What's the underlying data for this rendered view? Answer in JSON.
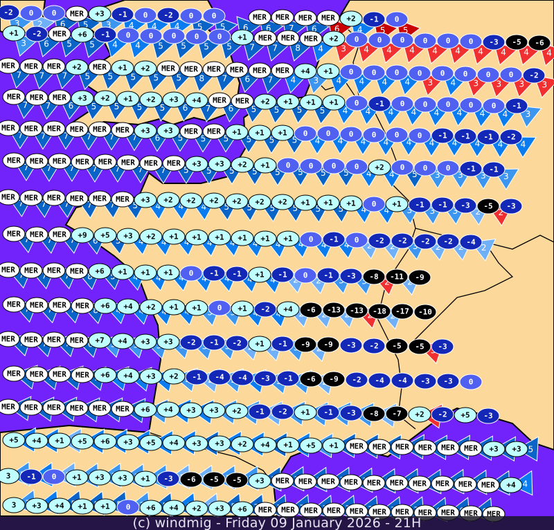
{
  "caption": "(c) windmig - Friday 09 January 2026 - 21H",
  "colors": {
    "sea": "#7222fa",
    "land": "#fcd99a",
    "border": "#000000",
    "temp_sea": "#ffffff",
    "temp_positive": "#c0ffff",
    "temp_zero": "#5060f0",
    "temp_negative": "#1428b8",
    "temp_very_cold": "#000000",
    "wind_2": "#70b0f8",
    "wind_3": "#3c96f0",
    "wind_4": "#0a7cf0",
    "wind_5plus": "#0a64c8",
    "wind_alert": "#f03030",
    "wind_alert_strong": "#c80000"
  },
  "map": {
    "sea_label": "MER",
    "rows": [
      {
        "temps": [
          "-2",
          "0",
          "0",
          "MER",
          "+3",
          "-1",
          "0",
          "-2",
          "0",
          "0",
          "",
          "MER",
          "MER",
          "MER",
          "MER",
          "+2",
          "-1",
          "0",
          "",
          "",
          "",
          "",
          "",
          ""
        ],
        "winds": [
          "3",
          "2",
          "6",
          "5",
          "3",
          "4",
          "4",
          "4",
          "5",
          "5",
          "6",
          "6",
          "7",
          "6",
          "6r",
          "4",
          "5r",
          "5r",
          "",
          "",
          "",
          "",
          "",
          ""
        ]
      },
      {
        "temps": [
          "+1",
          "-2",
          "MER",
          "+6",
          "-1",
          "0",
          "0",
          "0",
          "0",
          "0",
          "+1",
          "MER",
          "MER",
          "MER",
          "+2",
          "0",
          "0",
          "0",
          "0",
          "0",
          "0",
          "-3",
          "-5",
          "-6"
        ],
        "winds": [
          "3",
          "6",
          "5",
          "5",
          "4",
          "4",
          "5",
          "5",
          "5",
          "5",
          "7",
          "7",
          "8",
          "4",
          "3r",
          "4r",
          "4r",
          "4r",
          "4r",
          "4r",
          "4r",
          "4r",
          "4r",
          "4r"
        ]
      },
      {
        "temps": [
          "MER",
          "MER",
          "MER",
          "+2",
          "MER",
          "+1",
          "+2",
          "MER",
          "MER",
          "MER",
          "MER",
          "MER",
          "MER",
          "+4",
          "+1",
          "0",
          "0",
          "0",
          "0",
          "0",
          "0",
          "0",
          "0",
          "-2"
        ],
        "winds": [
          "7",
          "7",
          "7",
          "5",
          "5",
          "5",
          "5",
          "5",
          "8",
          "7",
          "6",
          "7",
          "4",
          "3",
          "4",
          "4",
          "4",
          "4",
          "3r",
          "4",
          "3r",
          "3r",
          "3r",
          "3r"
        ]
      },
      {
        "temps": [
          "MER",
          "MER",
          "MER",
          "+3",
          "+2",
          "+1",
          "+2",
          "+3",
          "+4",
          "MER",
          "MER",
          "+2",
          "+1",
          "+1",
          "+1",
          "0",
          "-1",
          "0",
          "0",
          "0",
          "0",
          "0",
          "-1",
          ""
        ],
        "winds": [
          "7",
          "7",
          "6",
          "5",
          "5",
          "5",
          "5",
          "6",
          "7",
          "6",
          "5",
          "5",
          "5",
          "5",
          "4",
          "4",
          "4",
          "4",
          "4",
          "4",
          "4",
          "4",
          "3",
          ""
        ]
      },
      {
        "temps": [
          "MER",
          "MER",
          "MER",
          "MER",
          "MER",
          "MER",
          "+3",
          "+3",
          "MER",
          "MER",
          "+1",
          "+1",
          "+1",
          "0",
          "0",
          "0",
          "0",
          "0",
          "0",
          "-1",
          "-1",
          "-1",
          "-2",
          ""
        ],
        "winds": [
          "7",
          "7",
          "7",
          "7",
          "7",
          "7",
          "6",
          "5",
          "5",
          "5",
          "5",
          "5",
          "5",
          "4",
          "4",
          "4",
          "4",
          "4",
          "4",
          "4",
          "4",
          "4",
          "4",
          ""
        ]
      },
      {
        "temps": [
          "MER",
          "MER",
          "MER",
          "MER",
          "MER",
          "MER",
          "MER",
          "MER",
          "+3",
          "+3",
          "+2",
          "+1",
          "0",
          "0",
          "0",
          "0",
          "+2",
          "0",
          "0",
          "0",
          "-1",
          "-1",
          "",
          ""
        ],
        "winds": [
          "7",
          "7",
          "7",
          "7",
          "7",
          "7",
          "7",
          "5",
          "5",
          "5",
          "5",
          "5",
          "5",
          "5",
          "5",
          "4",
          "4",
          "5",
          "3",
          "3",
          "3",
          "3",
          "",
          ""
        ]
      },
      {
        "temps": [
          "MER",
          "MER",
          "MER",
          "MER",
          "MER",
          "MER",
          "+3",
          "+2",
          "+2",
          "+2",
          "+2",
          "+2",
          "+2",
          "+1",
          "+1",
          "+1",
          "0",
          "+1",
          "-1",
          "-1",
          "-3",
          "-5",
          "-3",
          ""
        ],
        "winds": [
          "7",
          "7",
          "7",
          "7",
          "7",
          "5",
          "4",
          "4",
          "4",
          "5",
          "5",
          "5",
          "5",
          "5",
          "5",
          "4",
          "4",
          "3",
          "3",
          "3",
          "2",
          "2r",
          "",
          ""
        ]
      },
      {
        "temps": [
          "MER",
          "MER",
          "MER",
          "+9",
          "+5",
          "+3",
          "+2",
          "+1",
          "+1",
          "+1",
          "+1",
          "+1",
          "+1",
          "0",
          "-1",
          "0",
          "-2",
          "-2",
          "-2",
          "-2",
          "-4",
          "",
          "",
          ""
        ],
        "winds": [
          "7",
          "7",
          "7",
          "6",
          "5",
          "4",
          "4",
          "4",
          "4",
          "4",
          "4",
          "4",
          "4",
          "4",
          "4",
          "2",
          "2",
          "3",
          "2",
          "2",
          "2",
          "",
          "",
          ""
        ]
      },
      {
        "temps": [
          "MER",
          "MER",
          "MER",
          "MER",
          "+6",
          "+1",
          "+1",
          "+1",
          "0",
          "-1",
          "-1",
          "+1",
          "-1",
          "0",
          "-1",
          "-3",
          "-8",
          "-11",
          "-9",
          "",
          "",
          "",
          "",
          ""
        ],
        "winds": [
          "7",
          "7",
          "7",
          "8",
          "5",
          "4",
          "4",
          "4",
          "4",
          "4",
          "4",
          "4",
          "2",
          "2",
          "3",
          "3",
          "2r",
          "2",
          "",
          "",
          "",
          "",
          "",
          ""
        ]
      },
      {
        "temps": [
          "MER",
          "MER",
          "MER",
          "MER",
          "+6",
          "+4",
          "+2",
          "+1",
          "+1",
          "0",
          "+1",
          "-2",
          "+4",
          "-6",
          "-13",
          "-13",
          "-18",
          "-17",
          "-10",
          "",
          "",
          "",
          "",
          ""
        ],
        "winds": [
          "7",
          "7",
          "7",
          "8",
          "4",
          "4",
          "4",
          "4",
          "3",
          "3",
          "4",
          "4",
          "2",
          "2",
          "2",
          "2r",
          "2",
          "",
          "",
          "",
          "",
          "",
          "",
          ""
        ]
      },
      {
        "temps": [
          "MER",
          "MER",
          "MER",
          "MER",
          "+7",
          "+4",
          "+3",
          "+3",
          "-2",
          "-1",
          "-2",
          "+1",
          "-1",
          "-9",
          "-9",
          "-3",
          "-2",
          "-5",
          "-5",
          "-3",
          "",
          "",
          "",
          ""
        ],
        "winds": [
          "7",
          "7",
          "7",
          "6",
          "3",
          "3",
          "3",
          "3",
          "3",
          "3",
          "2",
          "2",
          "3",
          "2",
          "",
          "",
          "",
          "",
          "3r",
          "",
          "",
          "",
          "",
          ""
        ]
      },
      {
        "temps": [
          "MER",
          "MER",
          "MER",
          "MER",
          "+6",
          "+4",
          "+3",
          "+2",
          "-1",
          "-4",
          "-4",
          "-3",
          "-1",
          "-6",
          "-9",
          "-2",
          "-4",
          "-4",
          "-3",
          "-3",
          "0",
          "",
          "",
          ""
        ],
        "winds": [
          "7",
          "7",
          "7",
          "7",
          "4",
          "4",
          "4",
          "3",
          "2",
          "3",
          "4",
          "3",
          "3",
          "2",
          "",
          "",
          "",
          "",
          "",
          "",
          "",
          "",
          "",
          ""
        ]
      },
      {
        "temps": [
          "MER",
          "MER",
          "MER",
          "MER",
          "MER",
          "MER",
          "+6",
          "+4",
          "+3",
          "+3",
          "+2",
          "-1",
          "-2",
          "+1",
          "-1",
          "-3",
          "-8",
          "-7",
          "+2",
          "-2",
          "+5",
          "-3",
          "",
          ""
        ],
        "winds": [
          "7",
          "7",
          "7",
          "7",
          "7",
          "5",
          "3",
          "4",
          "4",
          "3",
          "3",
          "2",
          "3",
          "3",
          "3",
          "3",
          "2",
          "",
          "2r",
          "",
          "",
          "",
          "",
          ""
        ]
      },
      {
        "temps": [
          "+5",
          "+4",
          "+1",
          "+5",
          "+6",
          "+3",
          "+5",
          "+4",
          "+3",
          "+3",
          "+2",
          "+4",
          "+1",
          "+5",
          "+1",
          "MER",
          "MER",
          "MER",
          "MER",
          "MER",
          "MER",
          "+3",
          "+3",
          ""
        ],
        "winds": [
          "4",
          "4",
          "2",
          "4",
          "4",
          "4",
          "4",
          "4",
          "5",
          "4",
          "4",
          "5",
          "4",
          "3",
          "5",
          "8",
          "8",
          "8",
          "8",
          "8",
          "8",
          "5",
          "5",
          ""
        ]
      },
      {
        "temps": [
          "3",
          "-1",
          "0",
          "+1",
          "+3",
          "+3",
          "+1",
          "-3",
          "-6",
          "-5",
          "-5",
          "+3",
          "MER",
          "MER",
          "MER",
          "MER",
          "MER",
          "MER",
          "MER",
          "MER",
          "MER",
          "MER",
          "+4",
          ""
        ],
        "winds": [
          "3",
          "4",
          "2",
          "3",
          "3",
          "3",
          "3",
          "2",
          "2",
          "3",
          "3",
          "7",
          "7",
          "7",
          "7",
          "7",
          "8",
          "8",
          "8",
          "8",
          "8",
          "5",
          "4",
          ""
        ]
      },
      {
        "temps": [
          "3",
          "+3",
          "+4",
          "+1",
          "+1",
          "0",
          "+6",
          "+4",
          "+2",
          "+3",
          "+6",
          "MER",
          "MER",
          "MER",
          "MER",
          "MER",
          "MER",
          "MER",
          "MER",
          "MER",
          "MER",
          "MER",
          "",
          ""
        ],
        "winds": [
          "3",
          "4",
          "5",
          "5",
          "5",
          "3",
          "5",
          "4",
          "2",
          "5",
          "7",
          "7",
          "7",
          "7",
          "7",
          "7",
          "7",
          "7",
          "8",
          "8",
          "8",
          "",
          "",
          ""
        ]
      }
    ]
  }
}
